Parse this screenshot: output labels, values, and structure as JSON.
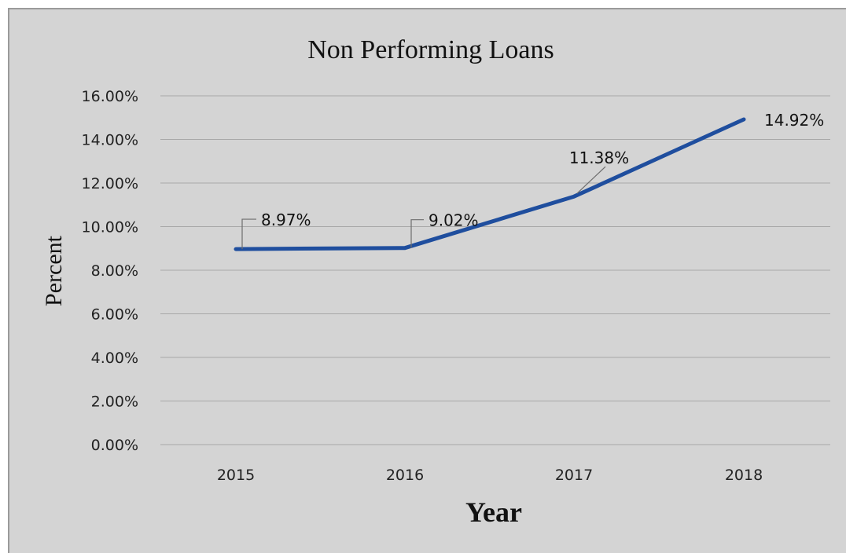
{
  "colors": {
    "background": "#d4d4d4",
    "series_line": "#1f4e9e",
    "gridline": "#a8a8a8"
  },
  "chart_data": {
    "type": "line",
    "title": "Non Performing Loans",
    "xlabel": "Year",
    "ylabel": "Percent",
    "categories": [
      "2015",
      "2016",
      "2017",
      "2018"
    ],
    "series": [
      {
        "values": [
          8.97,
          9.02,
          11.38,
          14.92
        ],
        "data_labels": [
          "8.97%",
          "9.02%",
          "11.38%",
          "14.92%"
        ]
      }
    ],
    "ylim": [
      0,
      16
    ],
    "yticks": [
      0,
      2,
      4,
      6,
      8,
      10,
      12,
      14,
      16
    ],
    "ytick_labels": [
      "0.00%",
      "2.00%",
      "4.00%",
      "6.00%",
      "8.00%",
      "10.00%",
      "12.00%",
      "14.00%",
      "16.00%"
    ],
    "grid": true,
    "legend": "none"
  }
}
